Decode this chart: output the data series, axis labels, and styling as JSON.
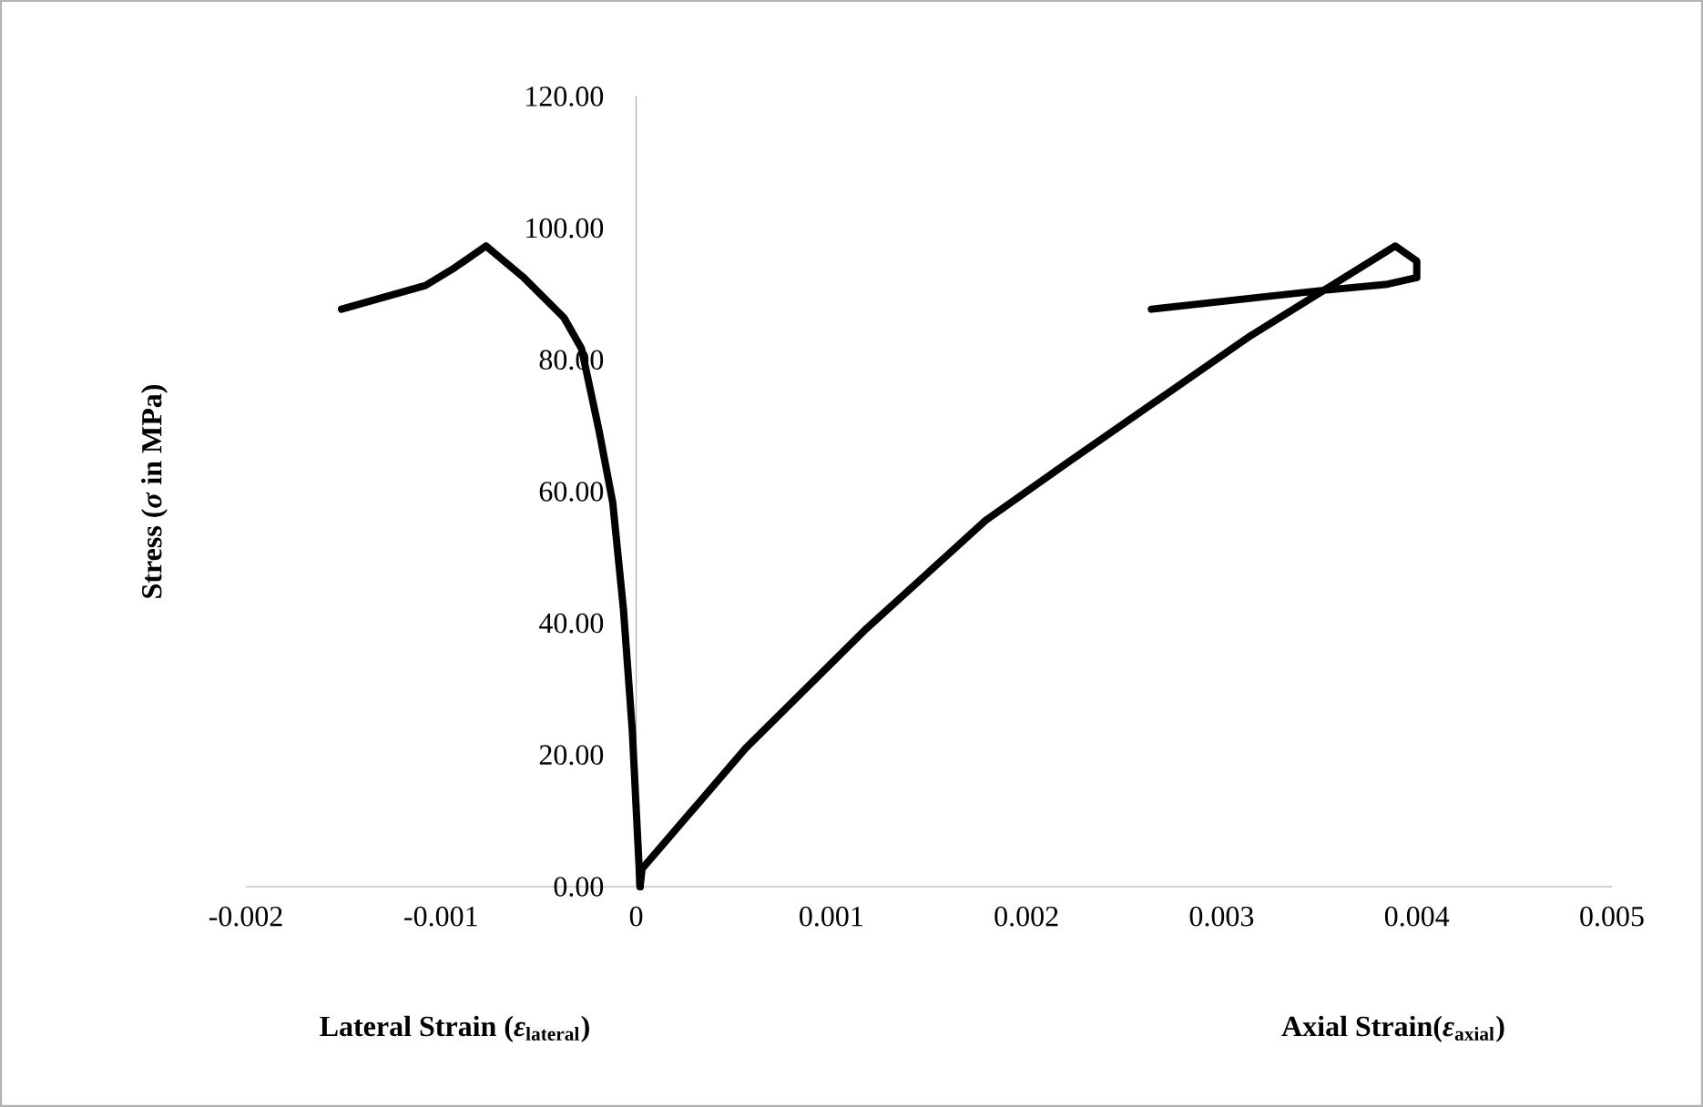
{
  "chart_data": {
    "type": "line",
    "ylabel": "Stress (*σ* in MPa)",
    "annotations": [
      "Lateral Strain (*ε*$_{lateral}$)",
      "Axial Strain(*ε*$_{axial}$)"
    ],
    "series": [
      {
        "color": "#000000",
        "x": [
          -0.00151,
          -0.00108,
          -0.00093,
          -0.00077,
          -0.00058,
          -0.00037,
          -0.00028,
          -0.00019,
          -0.00012,
          -6.5e-05,
          -2e-05,
          2e-05
        ],
        "values": [
          87.7,
          91.3,
          94,
          97.3,
          92.6,
          86.4,
          81.7,
          69.2,
          58.3,
          42,
          23.7,
          0
        ]
      },
      {
        "color": "#000000",
        "x": [
          2e-05,
          3e-05,
          0.00056,
          0.00118,
          0.00179,
          0.00222,
          0.00315,
          0.00389,
          0.004,
          0.004,
          0.00385,
          0.0035,
          0.00264
        ],
        "values": [
          0,
          2.7,
          21,
          39.2,
          55.6,
          64.6,
          83.7,
          97.3,
          95,
          92.5,
          91.5,
          90.5,
          87.7
        ]
      }
    ],
    "xlim": [
      -0.002,
      0.005
    ],
    "xticks": [
      -0.002,
      -0.001,
      0,
      0.001,
      0.002,
      0.003,
      0.004,
      0.005
    ],
    "ylim": [
      0,
      120
    ],
    "yticks": [
      {
        "value": 0,
        "label": "0.00"
      },
      {
        "value": 20,
        "label": "20.00"
      },
      {
        "value": 40,
        "label": "40.00"
      },
      {
        "value": 60,
        "label": "60.00"
      },
      {
        "value": 80,
        "label": "80.00"
      },
      {
        "value": 100,
        "label": "100.00"
      },
      {
        "value": 120,
        "label": "120.00"
      }
    ],
    "grid": false
  }
}
